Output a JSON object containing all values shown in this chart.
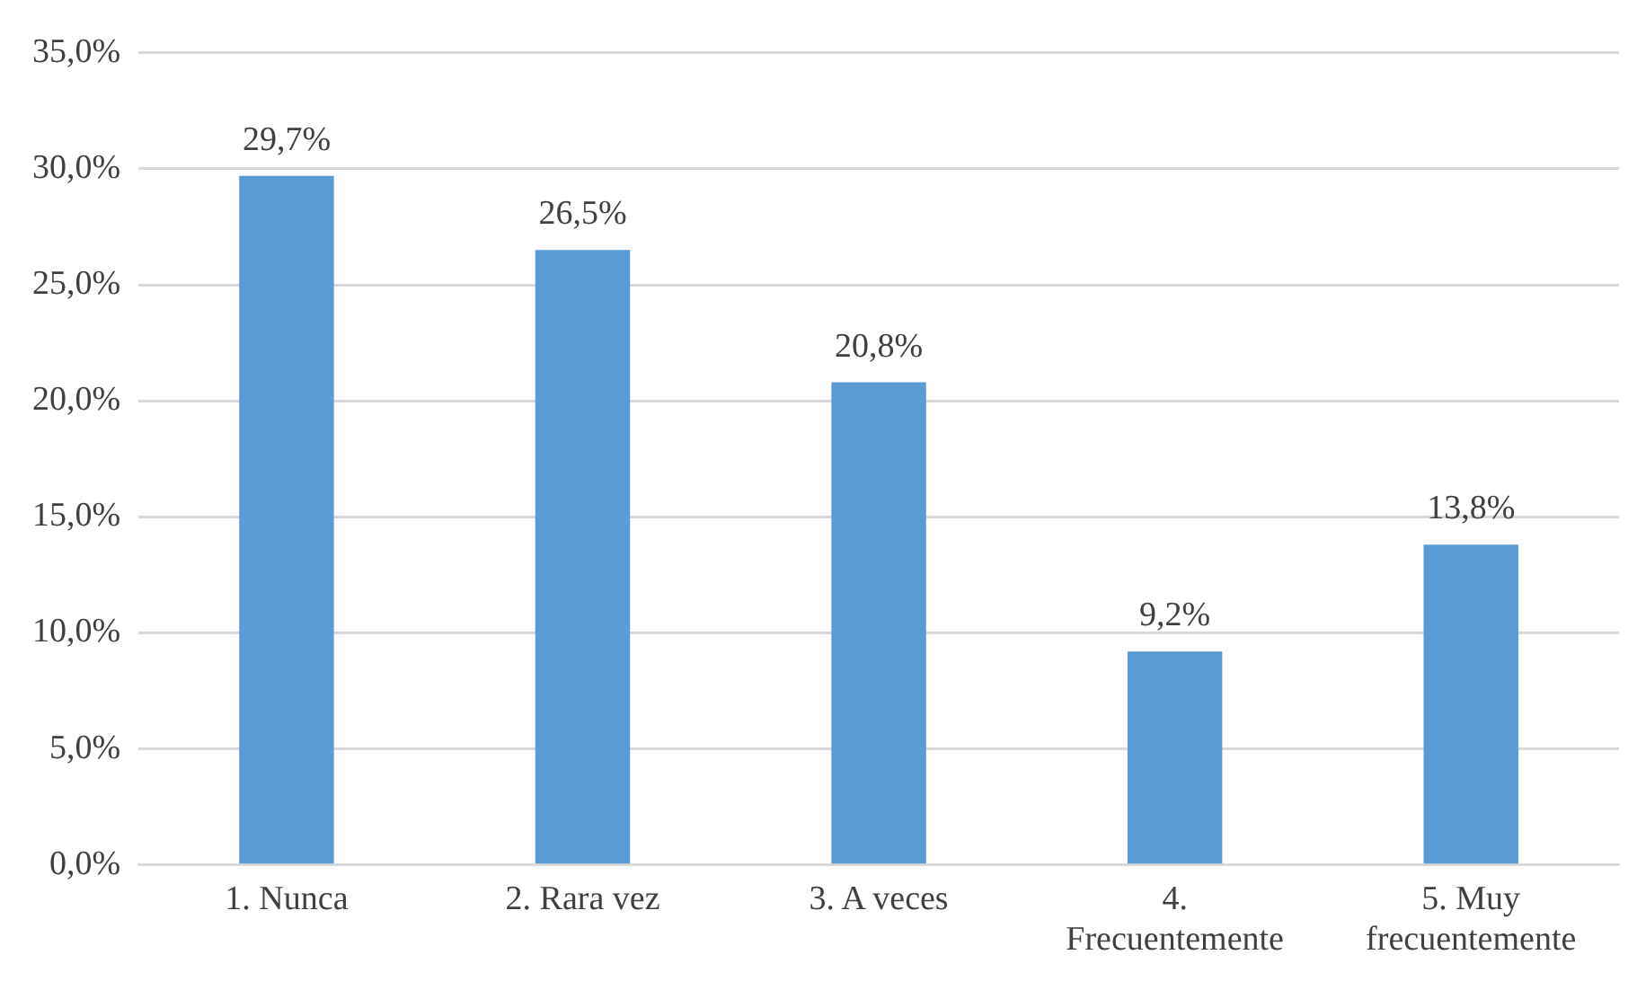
{
  "chart_data": {
    "type": "bar",
    "categories": [
      "1. Nunca",
      "2. Rara vez",
      "3. A veces",
      "4. Frecuentemente",
      "5. Muy frecuentemente"
    ],
    "values": [
      29.7,
      26.5,
      20.8,
      9.2,
      13.8
    ],
    "value_labels": [
      "29,7%",
      "26,5%",
      "20,8%",
      "9,2%",
      "13,8%"
    ],
    "color": "#5b9bd5",
    "ylim": [
      0,
      35
    ],
    "yticks": [
      {
        "value": 0,
        "label": "0,0%"
      },
      {
        "value": 5,
        "label": "5,0%"
      },
      {
        "value": 10,
        "label": "10,0%"
      },
      {
        "value": 15,
        "label": "15,0%"
      },
      {
        "value": 20,
        "label": "20,0%"
      },
      {
        "value": 25,
        "label": "25,0%"
      },
      {
        "value": 30,
        "label": "30,0%"
      },
      {
        "value": 35,
        "label": "35,0%"
      }
    ],
    "grid": "y",
    "legend": false
  }
}
